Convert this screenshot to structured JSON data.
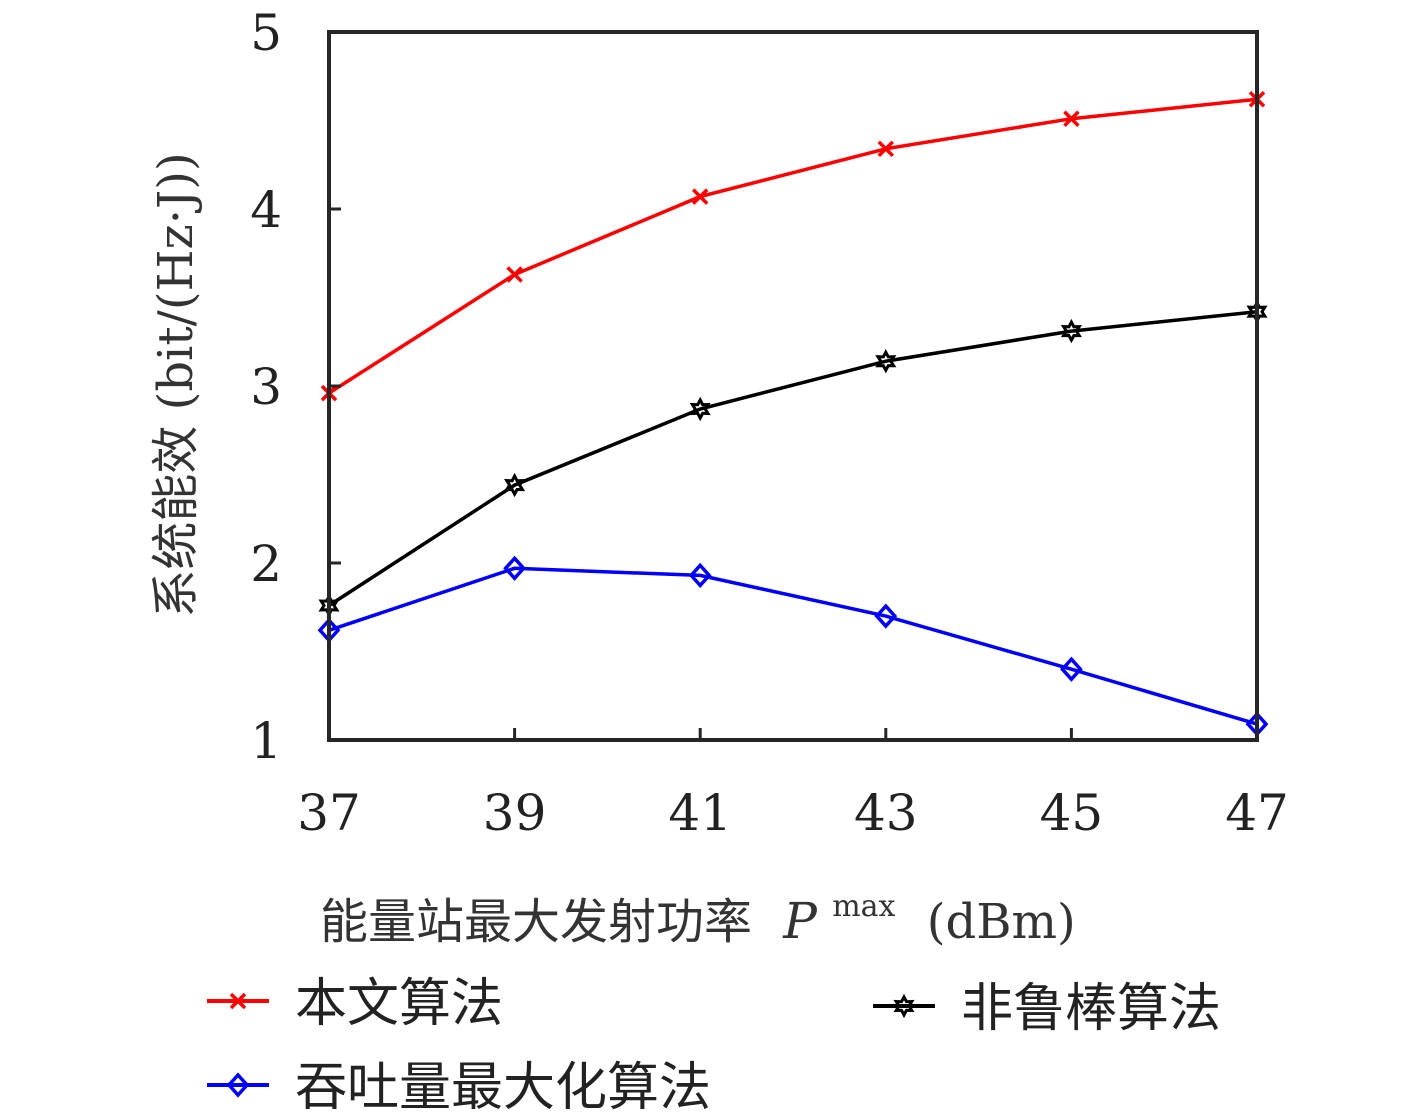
{
  "chart_data": {
    "type": "line",
    "title": "",
    "xlabel": "能量站最大发射功率",
    "xlabel_symbol": "P",
    "xlabel_superscript": "max",
    "xlabel_unit": "(dBm)",
    "ylabel": "系统能效 (bit/(Hz·J))",
    "x": [
      37,
      39,
      41,
      43,
      45,
      47
    ],
    "xticks": [
      "37",
      "39",
      "41",
      "43",
      "45",
      "47"
    ],
    "yticks": [
      "1",
      "2",
      "3",
      "4",
      "5"
    ],
    "xlim": [
      37,
      47
    ],
    "ylim": [
      1,
      5
    ],
    "grid": false,
    "legend_position": "bottom",
    "series": [
      {
        "name": "本文算法",
        "color": "#ff0000",
        "marker": "x",
        "values": [
          2.96,
          3.63,
          4.07,
          4.34,
          4.51,
          4.62
        ]
      },
      {
        "name": "非鲁棒算法",
        "color": "#000000",
        "marker": "hexagram",
        "values": [
          1.76,
          2.44,
          2.87,
          3.14,
          3.31,
          3.42
        ]
      },
      {
        "name": "吞吐量最大化算法",
        "color": "#0000ff",
        "marker": "diamond",
        "values": [
          1.62,
          1.97,
          1.93,
          1.7,
          1.4,
          1.09
        ]
      }
    ]
  }
}
